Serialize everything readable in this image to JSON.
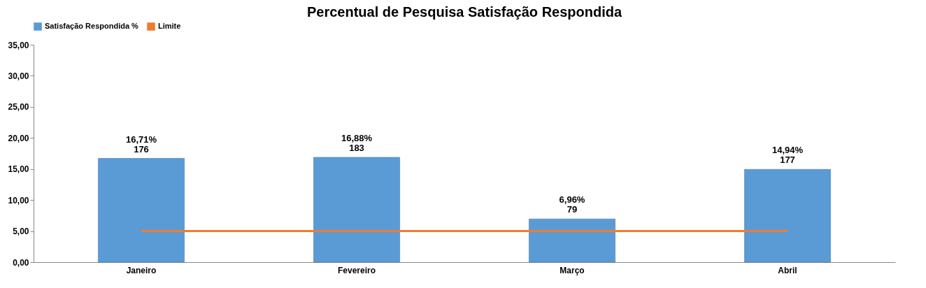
{
  "chart_data": {
    "type": "bar",
    "title": "Percentual de Pesquisa Satisfação Respondida",
    "categories": [
      "Janeiro",
      "Fevereiro",
      "Março",
      "Abril"
    ],
    "series": [
      {
        "name": "Satisfação Respondida %",
        "color": "#5b9bd5",
        "values": [
          16.71,
          16.88,
          6.96,
          14.94
        ],
        "value_labels": [
          "16,71%\n176",
          "16,88%\n183",
          "6,96%\n79",
          "14,94%\n177"
        ]
      },
      {
        "name": "Limite",
        "type": "line",
        "color": "#ed7d31",
        "values": [
          5,
          5,
          5,
          5
        ]
      }
    ],
    "ylim": [
      0,
      35
    ],
    "yticks": [
      {
        "value": 0,
        "label": "0,00"
      },
      {
        "value": 5,
        "label": "5,00"
      },
      {
        "value": 10,
        "label": "10,00"
      },
      {
        "value": 15,
        "label": "15,00"
      },
      {
        "value": 20,
        "label": "20,00"
      },
      {
        "value": 25,
        "label": "25,00"
      },
      {
        "value": 30,
        "label": "30,00"
      },
      {
        "value": 35,
        "label": "35,00"
      }
    ],
    "grid": false,
    "legend": "top"
  }
}
